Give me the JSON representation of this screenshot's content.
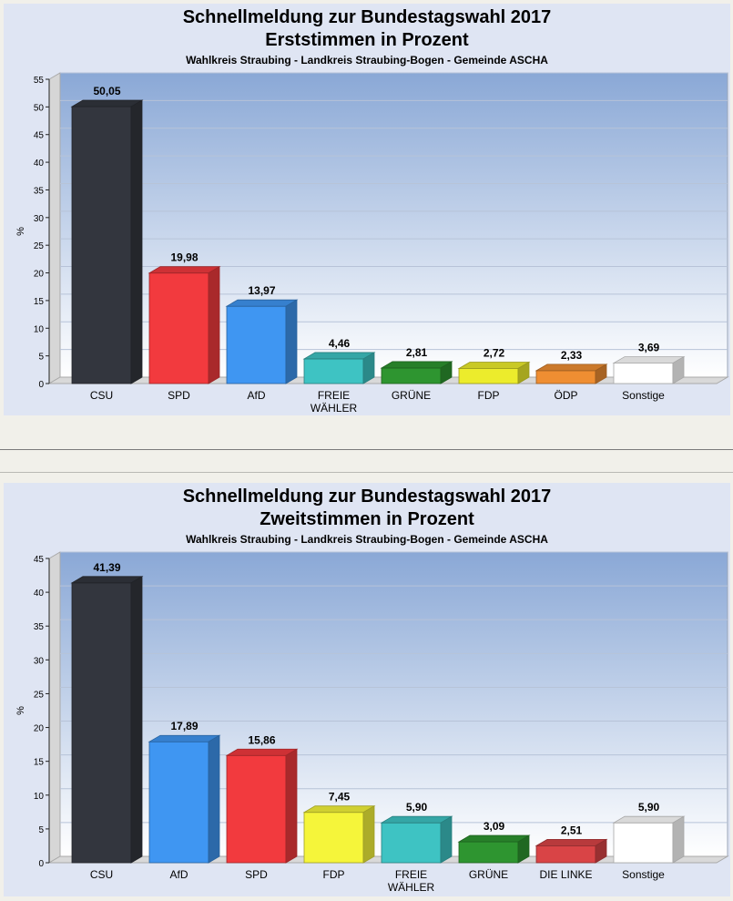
{
  "charts": [
    {
      "title": "Schnellmeldung zur Bundestagswahl 2017",
      "subtitle": "Erststimmen in Prozent",
      "caption": "Wahlkreis Straubing - Landkreis Straubing-Bogen - Gemeinde ASCHA"
    },
    {
      "title": "Schnellmeldung zur Bundestagswahl 2017",
      "subtitle": "Zweitstimmen in Prozent",
      "caption": "Wahlkreis Straubing - Landkreis Straubing-Bogen - Gemeinde ASCHA"
    }
  ],
  "chart_data": [
    {
      "type": "bar",
      "title": "Schnellmeldung zur Bundestagswahl 2017",
      "subtitle": "Erststimmen in Prozent",
      "caption": "Wahlkreis Straubing - Landkreis Straubing-Bogen - Gemeinde ASCHA",
      "ylabel": "%",
      "xlabel": "",
      "ylim": [
        0,
        55
      ],
      "yticks": [
        0,
        5,
        10,
        15,
        20,
        25,
        30,
        35,
        40,
        45,
        50,
        55
      ],
      "grid": true,
      "categories": [
        [
          "CSU"
        ],
        [
          "SPD"
        ],
        [
          "AfD"
        ],
        [
          "FREIE",
          "WÄHLER"
        ],
        [
          "GRÜNE"
        ],
        [
          "FDP"
        ],
        [
          "ÖDP"
        ],
        [
          "Sonstige"
        ]
      ],
      "values": [
        50.05,
        19.98,
        13.97,
        4.46,
        2.81,
        2.72,
        2.33,
        3.69
      ],
      "value_labels": [
        "50,05",
        "19,98",
        "13,97",
        "4,46",
        "2,81",
        "2,72",
        "2,33",
        "3,69"
      ],
      "colors": [
        "#33363e",
        "#f23a3e",
        "#3f96f2",
        "#3ec3c3",
        "#2e9530",
        "#ecec2c",
        "#ef8e32",
        "#ffffff"
      ]
    },
    {
      "type": "bar",
      "title": "Schnellmeldung zur Bundestagswahl 2017",
      "subtitle": "Zweitstimmen in Prozent",
      "caption": "Wahlkreis Straubing - Landkreis Straubing-Bogen - Gemeinde ASCHA",
      "ylabel": "%",
      "xlabel": "",
      "ylim": [
        0,
        45
      ],
      "yticks": [
        0,
        5,
        10,
        15,
        20,
        25,
        30,
        35,
        40,
        45
      ],
      "grid": true,
      "categories": [
        [
          "CSU"
        ],
        [
          "AfD"
        ],
        [
          "SPD"
        ],
        [
          "FDP"
        ],
        [
          "FREIE",
          "WÄHLER"
        ],
        [
          "GRÜNE"
        ],
        [
          "DIE LINKE"
        ],
        [
          "Sonstige"
        ]
      ],
      "values": [
        41.39,
        17.89,
        15.86,
        7.45,
        5.9,
        3.09,
        2.51,
        5.9
      ],
      "value_labels": [
        "41,39",
        "17,89",
        "15,86",
        "7,45",
        "5,90",
        "3,09",
        "2,51",
        "5,90"
      ],
      "colors": [
        "#33363e",
        "#3f96f2",
        "#f23a3e",
        "#f5f53a",
        "#3ec3c3",
        "#2e9530",
        "#d94446",
        "#ffffff"
      ]
    }
  ]
}
